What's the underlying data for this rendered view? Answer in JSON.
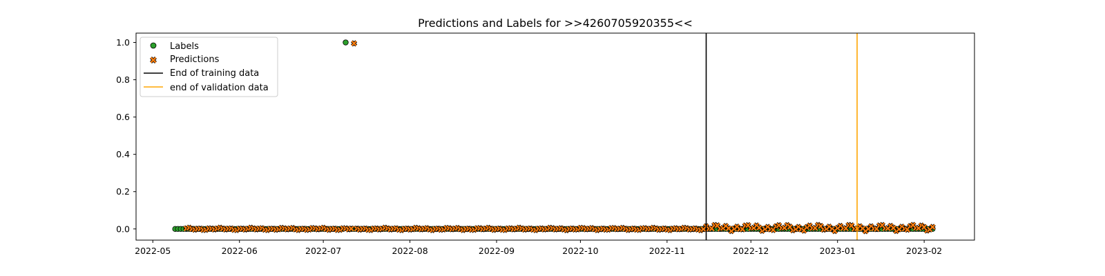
{
  "chart_data": {
    "type": "scatter",
    "title": "Predictions and Labels for >>4260705920355<<",
    "xlabel": "",
    "ylabel": "",
    "x_start": "2022-05-09",
    "x_end": "2023-02-04",
    "xlim": [
      "2022-04-25",
      "2023-02-19"
    ],
    "ylim": [
      -0.06,
      1.05
    ],
    "x_ticks": [
      "2022-05",
      "2022-06",
      "2022-07",
      "2022-08",
      "2022-09",
      "2022-10",
      "2022-11",
      "2022-12",
      "2023-01",
      "2023-02"
    ],
    "y_ticks": [
      "0.0",
      "0.2",
      "0.4",
      "0.6",
      "0.8",
      "1.0"
    ],
    "grid": false,
    "legend_position": "top-left",
    "series": [
      {
        "name": "Labels",
        "marker": "circle",
        "color": "#2ca02c",
        "values_description_note": "0 on every day except 1 on 2022-07-09",
        "spike": {
          "x": "2022-07-09",
          "y": 1.0
        }
      },
      {
        "name": "Predictions",
        "marker": "x",
        "color": "#ff7f0e",
        "start": "2022-05-13",
        "end": "2023-02-04",
        "spike": {
          "x": "2022-07-12",
          "y": 0.995
        }
      }
    ],
    "vlines": [
      {
        "name": "End of training data",
        "x": "2022-11-15",
        "color": "#000000"
      },
      {
        "name": "end of validation data",
        "x": "2023-01-08",
        "color": "#ffa500"
      }
    ]
  }
}
